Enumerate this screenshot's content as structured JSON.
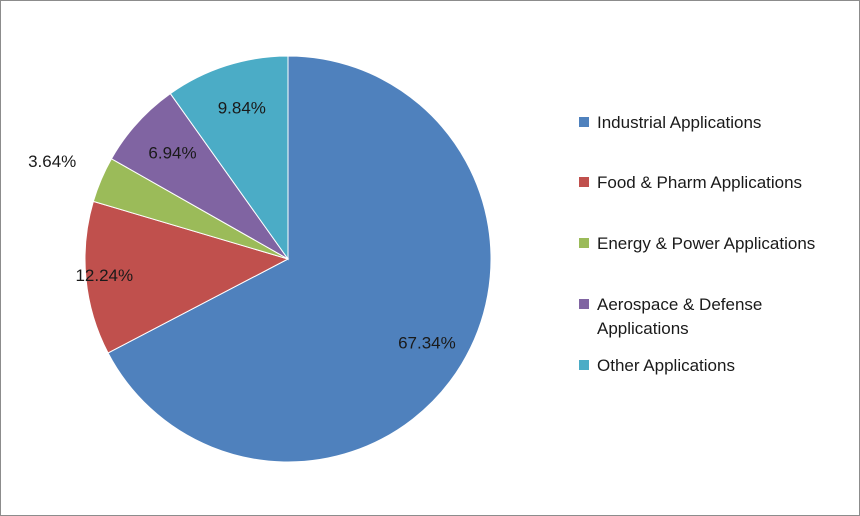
{
  "chart_data": {
    "type": "pie",
    "title": "",
    "legend_position": "right",
    "start_angle_deg": 0,
    "direction": "clockwise",
    "slices": [
      {
        "name": "Industrial Applications",
        "value": 67.34,
        "label": "67.34%",
        "color": "#4F81BD"
      },
      {
        "name": "Food & Pharm Applications",
        "value": 12.24,
        "label": "12.24%",
        "color": "#C0504D"
      },
      {
        "name": "Energy & Power Applications",
        "value": 3.64,
        "label": "3.64%",
        "color": "#9BBB59"
      },
      {
        "name": "Aerospace & Defense Applications",
        "value": 6.94,
        "label": "6.94%",
        "color": "#8064A2"
      },
      {
        "name": "Other Applications",
        "value": 9.84,
        "label": "9.84%",
        "color": "#4BACC6"
      }
    ]
  }
}
